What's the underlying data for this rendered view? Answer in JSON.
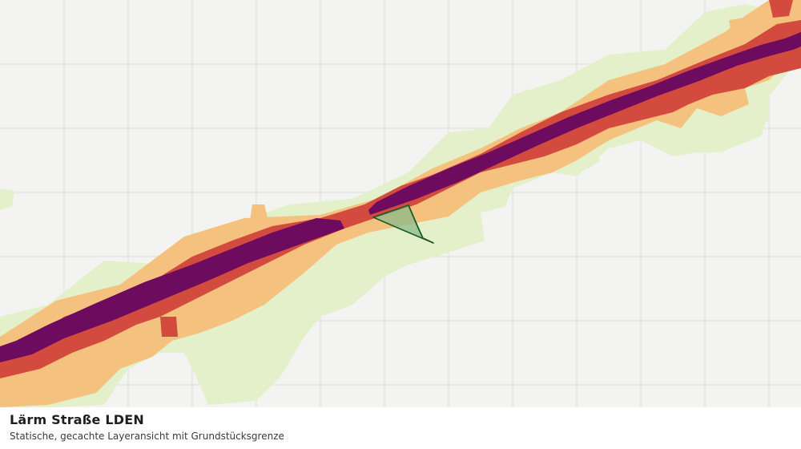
{
  "caption": {
    "title": "Lärm Straße LDEN",
    "subtitle": "Statische, gecachte Layeransicht mit Grundstücksgrenze"
  },
  "colors": {
    "background": "#f3f4f2",
    "grid": "#dcdedb",
    "noise_low": "#e3f0c9",
    "noise_mid": "#f5c17f",
    "noise_high": "#d24b3e",
    "noise_max": "#6d0b5e",
    "parcel_fill": "#8bb98a",
    "parcel_stroke": "#1d5a25"
  }
}
